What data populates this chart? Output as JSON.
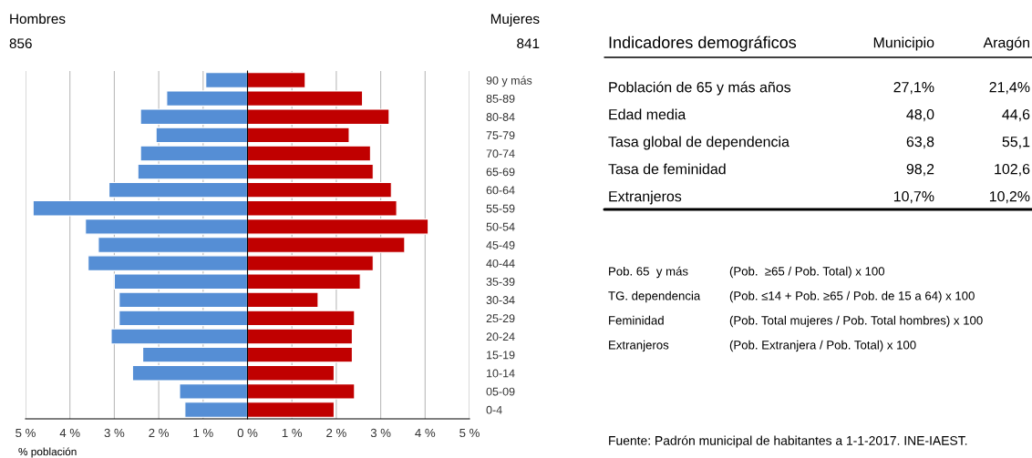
{
  "chart_data": [
    {
      "type": "bar",
      "orientation": "horizontal",
      "xlabel": "% población",
      "categories": [
        "90 y más",
        "85-89",
        "80-84",
        "75-79",
        "70-74",
        "65-69",
        "60-64",
        "55-59",
        "50-54",
        "45-49",
        "40-44",
        "35-39",
        "30-34",
        "25-29",
        "20-24",
        "15-19",
        "10-14",
        "05-09",
        "0-4"
      ],
      "series": [
        {
          "color": "#558ed5",
          "values": [
            -0.94,
            -1.82,
            -2.41,
            -2.06,
            -2.41,
            -2.47,
            -3.12,
            -4.83,
            -3.65,
            -3.36,
            -3.59,
            -3.0,
            -2.89,
            -2.89,
            -3.07,
            -2.36,
            -2.59,
            -1.53,
            -1.41
          ]
        },
        {
          "color": "#c00000",
          "values": [
            1.3,
            2.59,
            3.19,
            2.29,
            2.77,
            2.83,
            3.24,
            3.36,
            4.07,
            3.54,
            2.83,
            2.54,
            1.59,
            2.41,
            2.36,
            2.36,
            1.95,
            2.41,
            1.95
          ]
        }
      ],
      "annotations": [
        "Hombres",
        "856",
        "Mujeres",
        "841"
      ],
      "stacked": true,
      "xlim": [
        -5,
        5
      ],
      "xticks": [
        {
          "value": -5,
          "label": "5 %"
        },
        {
          "value": -4,
          "label": "4 %"
        },
        {
          "value": -3,
          "label": "3 %"
        },
        {
          "value": -2,
          "label": "2 %"
        },
        {
          "value": -1,
          "label": "1 %"
        },
        {
          "value": 0,
          "label": "0 %"
        },
        {
          "value": 1,
          "label": "1 %"
        },
        {
          "value": 2,
          "label": "2 %"
        },
        {
          "value": 3,
          "label": "3 %"
        },
        {
          "value": 4,
          "label": "4 %"
        },
        {
          "value": 5,
          "label": "5 %"
        }
      ],
      "grid": "x",
      "legend": false
    },
    {
      "type": "other",
      "title": "Indicadores demográficos",
      "categories": [
        "Población de 65 y más años",
        "Edad media",
        "Tasa global de dependencia",
        "Tasa de feminidad",
        "Extranjeros"
      ],
      "series": [
        {
          "name": "Municipio",
          "values": [
            27.1,
            48.0,
            63.8,
            98.2,
            10.7
          ],
          "value_labels": [
            "27,1%",
            "48,0",
            "63,8",
            "98,2",
            "10,7%"
          ]
        },
        {
          "name": "Aragón",
          "values": [
            21.4,
            44.6,
            55.1,
            102.6,
            10.2
          ],
          "value_labels": [
            "21,4%",
            "44,6",
            "55,1",
            "102,6",
            "10,2%"
          ]
        }
      ],
      "annotations": [
        "Pob. 65  y más",
        "(Pob.  ≥65 / Pob. Total) x 100",
        "TG. dependencia",
        "(Pob. ≤14 + Pob. ≥65 / Pob. de 15 a 64) x 100",
        "Feminidad",
        "(Pob. Total mujeres / Pob. Total hombres) x 100",
        "Extranjeros",
        "(Pob. Extranjera / Pob. Total) x 100",
        "Fuente: Padrón municipal de habitantes a 1-1-2017. INE-IAEST."
      ]
    }
  ]
}
